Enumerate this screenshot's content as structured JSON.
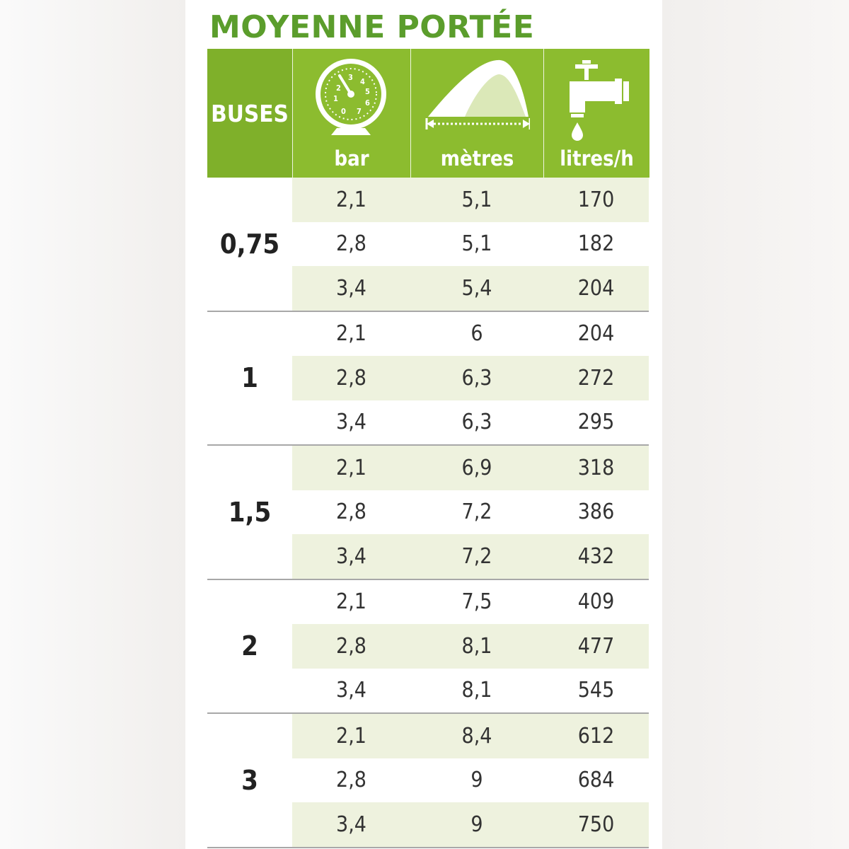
{
  "title": "MOYENNE PORTÉE",
  "header": {
    "buses": "BUSES",
    "bar": "bar",
    "metres": "mètres",
    "litres": "litres/h",
    "icons": [
      "pressure-gauge-icon",
      "spray-range-icon",
      "water-tap-icon"
    ],
    "gauge_digits": [
      "2",
      "3",
      "4",
      "5",
      "1",
      "6",
      "0",
      "7"
    ]
  },
  "colors": {
    "title": "#5b9d2c",
    "header_bg": "#8cbc2f",
    "header_buses_bg": "#7fb02a",
    "row_shade": "#eef2de",
    "separator": "#a8a8a8"
  },
  "groups": [
    {
      "nozzle": "0,75",
      "rows": [
        {
          "bar": "2,1",
          "metres": "5,1",
          "litres": "170"
        },
        {
          "bar": "2,8",
          "metres": "5,1",
          "litres": "182"
        },
        {
          "bar": "3,4",
          "metres": "5,4",
          "litres": "204"
        }
      ]
    },
    {
      "nozzle": "1",
      "rows": [
        {
          "bar": "2,1",
          "metres": "6",
          "litres": "204"
        },
        {
          "bar": "2,8",
          "metres": "6,3",
          "litres": "272"
        },
        {
          "bar": "3,4",
          "metres": "6,3",
          "litres": "295"
        }
      ]
    },
    {
      "nozzle": "1,5",
      "rows": [
        {
          "bar": "2,1",
          "metres": "6,9",
          "litres": "318"
        },
        {
          "bar": "2,8",
          "metres": "7,2",
          "litres": "386"
        },
        {
          "bar": "3,4",
          "metres": "7,2",
          "litres": "432"
        }
      ]
    },
    {
      "nozzle": "2",
      "rows": [
        {
          "bar": "2,1",
          "metres": "7,5",
          "litres": "409"
        },
        {
          "bar": "2,8",
          "metres": "8,1",
          "litres": "477"
        },
        {
          "bar": "3,4",
          "metres": "8,1",
          "litres": "545"
        }
      ]
    },
    {
      "nozzle": "3",
      "rows": [
        {
          "bar": "2,1",
          "metres": "8,4",
          "litres": "612"
        },
        {
          "bar": "2,8",
          "metres": "9",
          "litres": "684"
        },
        {
          "bar": "3,4",
          "metres": "9",
          "litres": "750"
        }
      ]
    }
  ]
}
